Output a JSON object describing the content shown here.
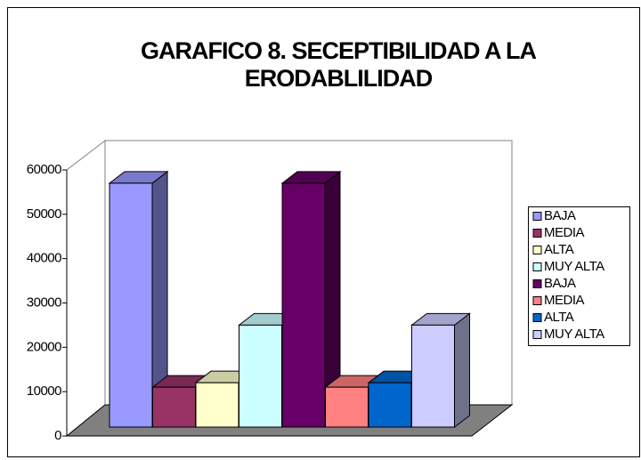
{
  "chart_data": {
    "type": "bar3d",
    "title": "GARAFICO 8. SECEPTIBILIDAD A LA ERODABLILIDAD",
    "ylim": [
      0,
      60000
    ],
    "yticks": [
      0,
      10000,
      20000,
      30000,
      40000,
      50000,
      60000
    ],
    "legend": "right",
    "series": [
      {
        "name": "BAJA",
        "color": "#9999ff",
        "values": [
          55000
        ]
      },
      {
        "name": "MEDIA",
        "color": "#993366",
        "values": [
          9000
        ]
      },
      {
        "name": "ALTA",
        "color": "#ffffcc",
        "values": [
          10000
        ]
      },
      {
        "name": "MUY ALTA",
        "color": "#ccffff",
        "values": [
          23000
        ]
      },
      {
        "name": "BAJA",
        "color": "#660066",
        "values": [
          55000
        ]
      },
      {
        "name": "MEDIA",
        "color": "#ff8080",
        "values": [
          9000
        ]
      },
      {
        "name": "ALTA",
        "color": "#0066cc",
        "values": [
          10000
        ]
      },
      {
        "name": "MUY ALTA",
        "color": "#ccccff",
        "values": [
          23000
        ]
      }
    ]
  }
}
